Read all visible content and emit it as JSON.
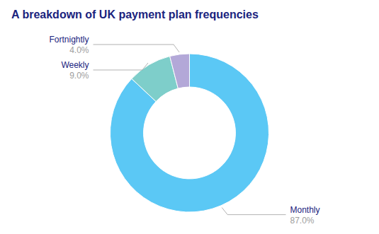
{
  "chart_data": {
    "type": "donut",
    "title": "A breakdown of UK payment plan frequencies",
    "categories": [
      "Monthly",
      "Weekly",
      "Fortnightly"
    ],
    "values": [
      87.0,
      9.0,
      4.0
    ],
    "value_labels": [
      "87.0%",
      "9.0%",
      "4.0%"
    ],
    "colors": [
      "#5bc8f5",
      "#7ececa",
      "#b3a8d8"
    ],
    "data_labels": true
  }
}
